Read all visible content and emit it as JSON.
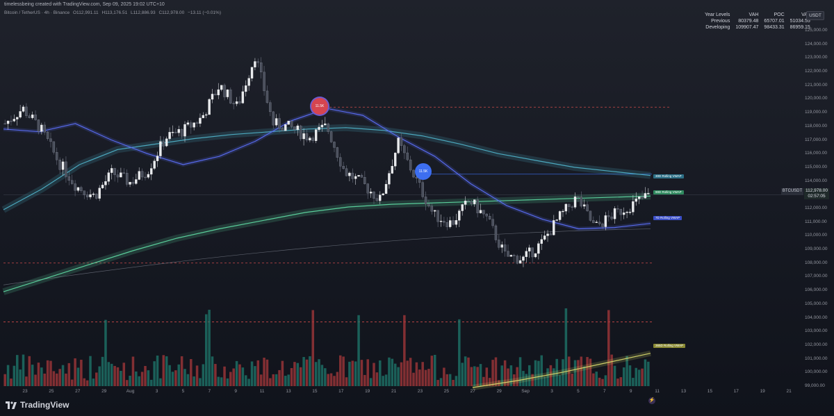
{
  "header": {
    "snapshot_line": "timelessbeing created with TradingView.com, Sep 09, 2025 19:02 UTC+10"
  },
  "symbol_bar": {
    "pair": "Bitcoin / TetherUS · 4h · Binance",
    "open": "O112,991.11",
    "high": "H113,176.51",
    "low": "L112,886.93",
    "close": "C112,978.00",
    "change": "−13.11 (−0.01%)"
  },
  "currency": "USDT",
  "levels_table": {
    "headers": [
      "Year Levels",
      "VAH",
      "POC",
      "VAL"
    ],
    "rows": [
      [
        "Previous",
        "80379.48",
        "65707.01",
        "51034.55"
      ],
      [
        "Developing",
        "109907.47",
        "98433.31",
        "86959.15"
      ]
    ]
  },
  "price_axis": {
    "labels": [
      "125,000.00",
      "124,000.00",
      "123,000.00",
      "122,000.00",
      "121,000.00",
      "120,000.00",
      "119,000.00",
      "118,000.00",
      "117,000.00",
      "116,000.00",
      "115,000.00",
      "114,000.00",
      "113,000.00",
      "112,000.00",
      "111,000.00",
      "110,000.00",
      "109,000.00",
      "108,000.00",
      "107,000.00",
      "106,000.00",
      "105,000.00",
      "104,000.00",
      "103,000.00",
      "102,000.00",
      "101,000.00",
      "100,000.00",
      "99,000.00"
    ]
  },
  "time_axis": {
    "labels": [
      "23",
      "25",
      "27",
      "29",
      "Aug",
      "3",
      "5",
      "7",
      "9",
      "11",
      "13",
      "15",
      "17",
      "19",
      "21",
      "23",
      "25",
      "27",
      "29",
      "Sep",
      "3",
      "5",
      "7",
      "9",
      "11",
      "13",
      "15",
      "17",
      "19",
      "21"
    ]
  },
  "current_price": {
    "ticker": "BTCUSDT",
    "price": "112,978.00",
    "countdown": "02:57:05"
  },
  "vwap_tags": [
    "30D Rolling VWAP",
    "90D Rolling VWAP",
    "7D Rolling VWAP",
    "365D Rolling VWAP"
  ],
  "bubbles": [
    "11.5K",
    "11.5K"
  ],
  "watermark": "TradingView",
  "colors": {
    "up": "#26a69a",
    "down": "#ef5350",
    "anchor": "#5b7cfa",
    "vwap30": "#4fb0c6",
    "vwap90": "#5ed6a0",
    "vwap7": "#5b6ef5",
    "vwap365": "#d8d86b"
  },
  "chart_data": {
    "type": "candlestick",
    "ylim": [
      98500,
      125500
    ],
    "x_range": [
      "Jul 22",
      "Sep 22"
    ],
    "candles_4h": "approximate",
    "key_levels": [
      {
        "label": "upper dotted level",
        "value": 119400
      },
      {
        "label": "middle dotted level",
        "value": 108000
      },
      {
        "label": "lower dotted level",
        "value": 103700
      },
      {
        "label": "blue horizontal ray",
        "value": 114500
      }
    ],
    "rolling_vwap": {
      "7D": [
        117800,
        117600,
        118200,
        117000,
        116000,
        115200,
        115800,
        116900,
        118400,
        119300,
        118800,
        117200,
        115800,
        113800,
        112200,
        111200,
        110500,
        110600,
        110900
      ],
      "30D": [
        111900,
        113400,
        115200,
        116300,
        116700,
        117100,
        117400,
        117600,
        117800,
        117900,
        117700,
        117300,
        116700,
        116000,
        115500,
        115000,
        114700,
        114400
      ],
      "90D": [
        105900,
        106900,
        107900,
        108900,
        109800,
        110500,
        111100,
        111700,
        112100,
        112300,
        112400,
        112500,
        112600,
        112700,
        112800,
        112900
      ],
      "365D": [
        98900,
        99400,
        100000,
        100700,
        101400
      ]
    },
    "price_path": [
      118200,
      119300,
      117800,
      115400,
      113600,
      112900,
      114600,
      113900,
      114800,
      117200,
      117700,
      118600,
      121000,
      119400,
      123200,
      118200,
      117900,
      117200,
      118000,
      114700,
      113800,
      112600,
      116800,
      114100,
      111500,
      110900,
      112600,
      111200,
      108500,
      108300,
      109400,
      111300,
      112800,
      110600,
      111500,
      112200,
      112978
    ]
  }
}
